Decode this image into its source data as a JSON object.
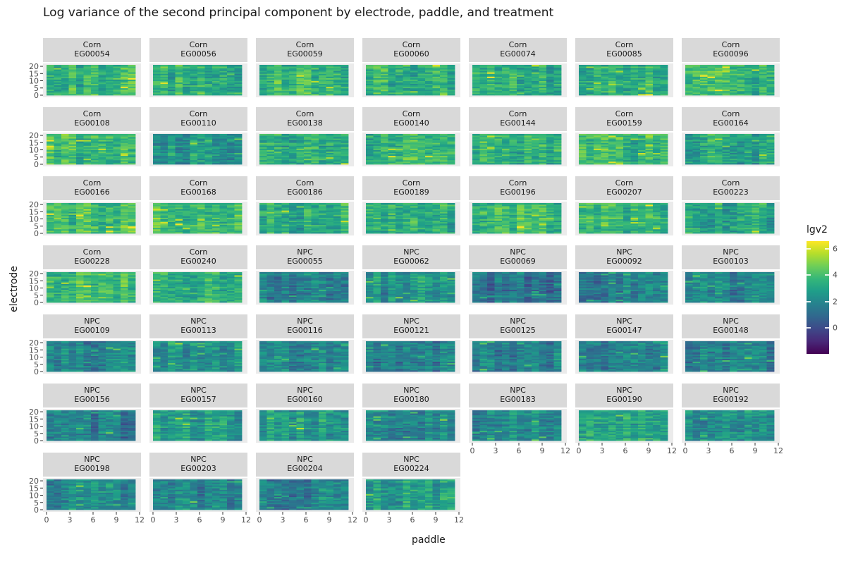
{
  "chart_data": {
    "type": "heatmap",
    "title": "Log variance of the second principal component by electrode, paddle, and treatment",
    "xlabel": "paddle",
    "ylabel": "electrode",
    "x_ticks": [
      0,
      3,
      6,
      9,
      12
    ],
    "y_ticks": [
      0,
      5,
      10,
      15,
      20
    ],
    "x_range": [
      0,
      12
    ],
    "y_range": [
      0,
      21
    ],
    "colormap": "viridis",
    "legend": {
      "title": "lgv2",
      "ticks": [
        0,
        2,
        4,
        6
      ],
      "range": [
        -2,
        6.6
      ],
      "placement": "right"
    },
    "facets": [
      {
        "treatment": "Corn",
        "id": "EG00054",
        "level": 3.6
      },
      {
        "treatment": "Corn",
        "id": "EG00056",
        "level": 3.5
      },
      {
        "treatment": "Corn",
        "id": "EG00059",
        "level": 3.6
      },
      {
        "treatment": "Corn",
        "id": "EG00060",
        "level": 3.4
      },
      {
        "treatment": "Corn",
        "id": "EG00074",
        "level": 3.3
      },
      {
        "treatment": "Corn",
        "id": "EG00085",
        "level": 3.4
      },
      {
        "treatment": "Corn",
        "id": "EG00096",
        "level": 3.6
      },
      {
        "treatment": "Corn",
        "id": "EG00108",
        "level": 3.7
      },
      {
        "treatment": "Corn",
        "id": "EG00110",
        "level": 2.6
      },
      {
        "treatment": "Corn",
        "id": "EG00138",
        "level": 3.2
      },
      {
        "treatment": "Corn",
        "id": "EG00140",
        "level": 3.5
      },
      {
        "treatment": "Corn",
        "id": "EG00144",
        "level": 3.4
      },
      {
        "treatment": "Corn",
        "id": "EG00159",
        "level": 3.6
      },
      {
        "treatment": "Corn",
        "id": "EG00164",
        "level": 3.0
      },
      {
        "treatment": "Corn",
        "id": "EG00166",
        "level": 3.9
      },
      {
        "treatment": "Corn",
        "id": "EG00168",
        "level": 3.9
      },
      {
        "treatment": "Corn",
        "id": "EG00186",
        "level": 3.3
      },
      {
        "treatment": "Corn",
        "id": "EG00189",
        "level": 3.3
      },
      {
        "treatment": "Corn",
        "id": "EG00196",
        "level": 3.8
      },
      {
        "treatment": "Corn",
        "id": "EG00207",
        "level": 3.6
      },
      {
        "treatment": "Corn",
        "id": "EG00223",
        "level": 3.0
      },
      {
        "treatment": "Corn",
        "id": "EG00228",
        "level": 3.8
      },
      {
        "treatment": "Corn",
        "id": "EG00240",
        "level": 3.5
      },
      {
        "treatment": "NPC",
        "id": "EG00055",
        "level": 1.6
      },
      {
        "treatment": "NPC",
        "id": "EG00062",
        "level": 2.3
      },
      {
        "treatment": "NPC",
        "id": "EG00069",
        "level": 1.3
      },
      {
        "treatment": "NPC",
        "id": "EG00092",
        "level": 1.9
      },
      {
        "treatment": "NPC",
        "id": "EG00103",
        "level": 2.0
      },
      {
        "treatment": "NPC",
        "id": "EG00109",
        "level": 1.7
      },
      {
        "treatment": "NPC",
        "id": "EG00113",
        "level": 2.4
      },
      {
        "treatment": "NPC",
        "id": "EG00116",
        "level": 1.9
      },
      {
        "treatment": "NPC",
        "id": "EG00121",
        "level": 1.6
      },
      {
        "treatment": "NPC",
        "id": "EG00125",
        "level": 1.5
      },
      {
        "treatment": "NPC",
        "id": "EG00147",
        "level": 1.6
      },
      {
        "treatment": "NPC",
        "id": "EG00148",
        "level": 1.8
      },
      {
        "treatment": "NPC",
        "id": "EG00156",
        "level": 1.5
      },
      {
        "treatment": "NPC",
        "id": "EG00157",
        "level": 2.6
      },
      {
        "treatment": "NPC",
        "id": "EG00160",
        "level": 2.6
      },
      {
        "treatment": "NPC",
        "id": "EG00180",
        "level": 1.9
      },
      {
        "treatment": "NPC",
        "id": "EG00183",
        "level": 2.2
      },
      {
        "treatment": "NPC",
        "id": "EG00190",
        "level": 3.1
      },
      {
        "treatment": "NPC",
        "id": "EG00192",
        "level": 2.1
      },
      {
        "treatment": "NPC",
        "id": "EG00198",
        "level": 2.0
      },
      {
        "treatment": "NPC",
        "id": "EG00203",
        "level": 1.7
      },
      {
        "treatment": "NPC",
        "id": "EG00204",
        "level": 1.7
      },
      {
        "treatment": "NPC",
        "id": "EG00224",
        "level": 2.7
      }
    ]
  }
}
